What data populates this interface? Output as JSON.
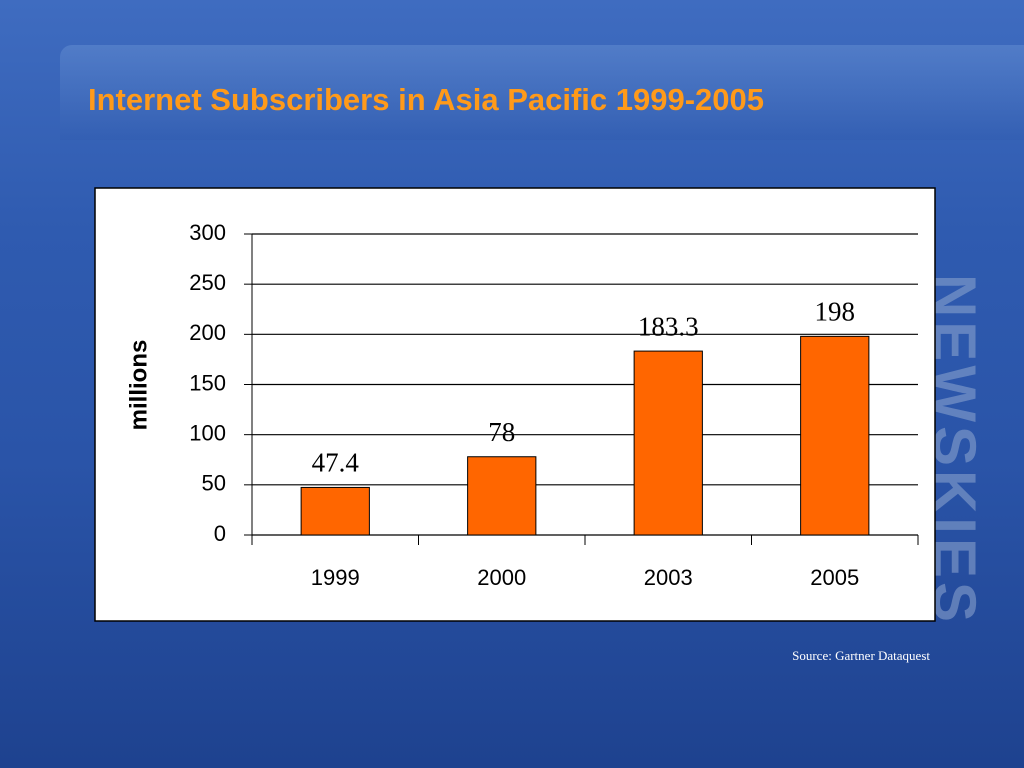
{
  "chart_data": {
    "type": "bar",
    "title": "Internet Subscribers in Asia Pacific 1999-2005",
    "ylabel": "millions",
    "categories": [
      "1999",
      "2000",
      "2003",
      "2005"
    ],
    "values": [
      47.4,
      78,
      183.3,
      198
    ],
    "color": "#ff6600",
    "ylim": [
      0,
      300
    ],
    "yticks": [
      0,
      50,
      100,
      150,
      200,
      250,
      300
    ],
    "grid": true,
    "source": "Source: Gartner Dataquest",
    "logo": "NEWSKIES"
  }
}
